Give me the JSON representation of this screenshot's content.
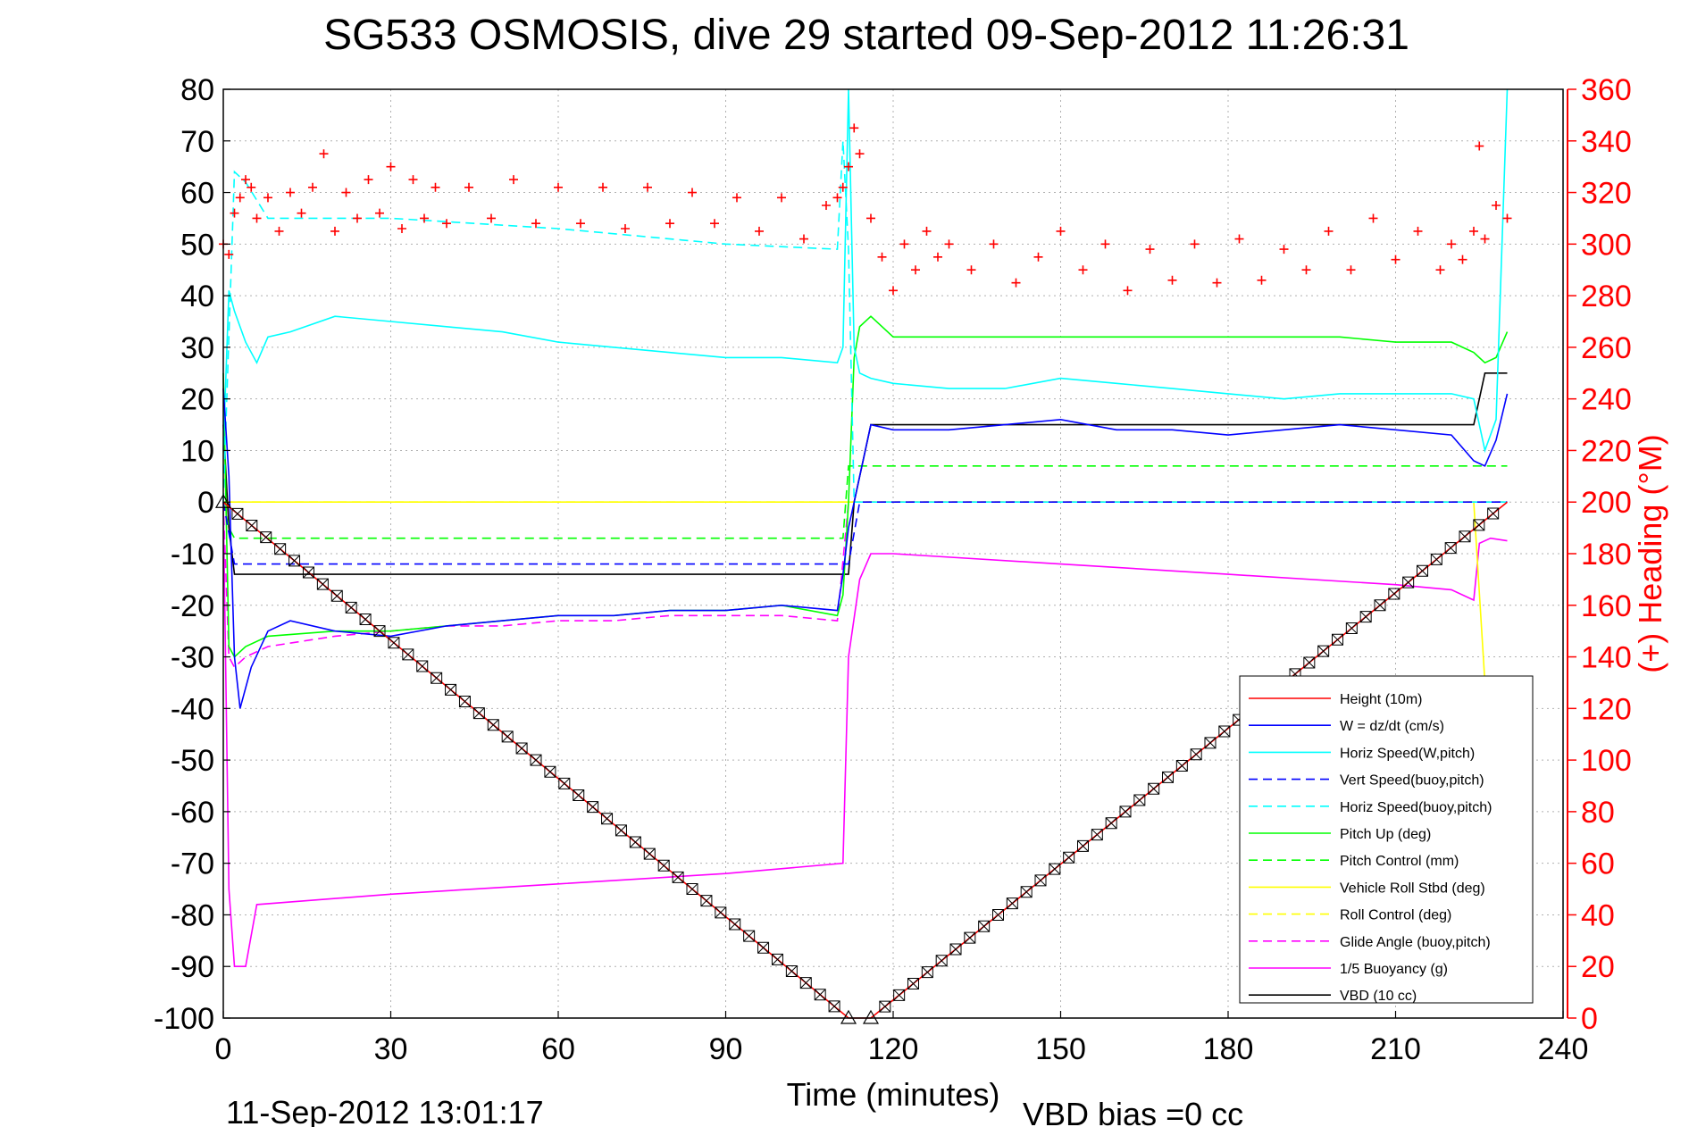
{
  "chart_data": {
    "type": "line",
    "title": "SG533 OSMOSIS, dive 29 started 09-Sep-2012 11:26:31",
    "xlabel": "Time (minutes)",
    "ylabel_right": "(+) Heading (°M)",
    "footer_left": "11-Sep-2012 13:01:17",
    "footer_right": "VBD bias =0 cc",
    "xlim": [
      0,
      240
    ],
    "ylim_left": [
      -100,
      80
    ],
    "ylim_right": [
      0,
      360
    ],
    "grid": true,
    "legend_position": "bottom-right",
    "x_ticks": [
      "0",
      "30",
      "60",
      "90",
      "120",
      "150",
      "180",
      "210",
      "240"
    ],
    "y_left_ticks": [
      "80",
      "70",
      "60",
      "50",
      "40",
      "30",
      "20",
      "10",
      "0",
      "-10",
      "-20",
      "-30",
      "-40",
      "-50",
      "-60",
      "-70",
      "-80",
      "-90",
      "-100"
    ],
    "y_right_ticks": [
      "360",
      "340",
      "320",
      "300",
      "280",
      "260",
      "240",
      "220",
      "200",
      "180",
      "160",
      "140",
      "120",
      "100",
      "80",
      "60",
      "40",
      "20",
      "0"
    ],
    "series": [
      {
        "name": "Height (10m)",
        "color": "#ff0000",
        "dash": "solid",
        "x": [
          0,
          112,
          116,
          230
        ],
        "y": [
          0,
          -100,
          -100,
          0
        ]
      },
      {
        "name": "W = dz/dt (cm/s)",
        "color": "#0000ff",
        "dash": "solid",
        "x": [
          0,
          1,
          2,
          3,
          5,
          8,
          12,
          20,
          30,
          40,
          50,
          60,
          70,
          80,
          90,
          100,
          110,
          111,
          112,
          113,
          114,
          116,
          120,
          130,
          140,
          150,
          160,
          170,
          180,
          190,
          200,
          210,
          220,
          224,
          226,
          228,
          230
        ],
        "y": [
          22,
          5,
          -30,
          -40,
          -32,
          -25,
          -23,
          -25,
          -26,
          -24,
          -23,
          -22,
          -22,
          -21,
          -21,
          -20,
          -21,
          -14,
          -5,
          0,
          5,
          15,
          14,
          14,
          15,
          16,
          14,
          14,
          13,
          14,
          15,
          14,
          13,
          8,
          7,
          12,
          21
        ]
      },
      {
        "name": "Horiz Speed(W,pitch)",
        "color": "#00ffff",
        "dash": "solid",
        "x": [
          0,
          1,
          2,
          4,
          6,
          8,
          12,
          20,
          30,
          40,
          50,
          60,
          70,
          80,
          90,
          100,
          110,
          111,
          112,
          113,
          114,
          116,
          120,
          130,
          140,
          150,
          160,
          170,
          180,
          190,
          200,
          210,
          220,
          224,
          226,
          228,
          230
        ],
        "y": [
          10,
          41,
          37,
          31,
          27,
          32,
          33,
          36,
          35,
          34,
          33,
          31,
          30,
          29,
          28,
          28,
          27,
          30,
          80,
          30,
          25,
          24,
          23,
          22,
          22,
          24,
          23,
          22,
          21,
          20,
          21,
          21,
          21,
          20,
          10,
          16,
          80
        ]
      },
      {
        "name": "Vert Speed(buoy,pitch)",
        "color": "#0000ff",
        "dash": "dash",
        "x": [
          0,
          2,
          112,
          114,
          230
        ],
        "y": [
          0,
          -12,
          -12,
          0,
          0
        ]
      },
      {
        "name": "Horiz Speed(buoy,pitch)",
        "color": "#00ffff",
        "dash": "dash",
        "x": [
          0,
          2,
          4,
          8,
          30,
          60,
          90,
          110,
          111,
          112,
          113,
          230
        ],
        "y": [
          0,
          64,
          62,
          55,
          55,
          53,
          50,
          49,
          70,
          49,
          0,
          0
        ]
      },
      {
        "name": "Pitch Up (deg)",
        "color": "#00ff00",
        "dash": "solid",
        "x": [
          0,
          1,
          2,
          4,
          8,
          20,
          30,
          40,
          50,
          60,
          70,
          80,
          90,
          100,
          110,
          111,
          112,
          113,
          114,
          116,
          120,
          130,
          140,
          150,
          160,
          170,
          180,
          190,
          200,
          210,
          220,
          224,
          226,
          228,
          230
        ],
        "y": [
          25,
          -28,
          -30,
          -28,
          -26,
          -25,
          -25,
          -24,
          -23,
          -22,
          -22,
          -21,
          -21,
          -20,
          -22,
          -18,
          0,
          28,
          34,
          36,
          32,
          32,
          32,
          32,
          32,
          32,
          32,
          32,
          32,
          31,
          31,
          29,
          27,
          28,
          33
        ]
      },
      {
        "name": "Pitch Control (mm)",
        "color": "#00ff00",
        "dash": "dash",
        "x": [
          0,
          1,
          2,
          30,
          60,
          90,
          110,
          111,
          112,
          113,
          230
        ],
        "y": [
          0,
          -5,
          -7,
          -7,
          -7,
          -7,
          -7,
          -7,
          7,
          7,
          7
        ]
      },
      {
        "name": "Vehicle Roll Stbd (deg)",
        "color": "#ffff00",
        "dash": "solid",
        "x": [
          0,
          2,
          10,
          20,
          30,
          40,
          50,
          60,
          70,
          80,
          90,
          100,
          110,
          112,
          120,
          130,
          140,
          150,
          160,
          170,
          180,
          190,
          200,
          210,
          220,
          224,
          226
        ],
        "y": [
          0,
          0,
          0,
          0,
          0,
          0,
          0,
          0,
          0,
          0,
          0,
          0,
          0,
          0,
          0,
          0,
          0,
          0,
          0,
          0,
          0,
          0,
          0,
          0,
          0,
          0,
          -35
        ]
      },
      {
        "name": "Roll Control (deg)",
        "color": "#ffff00",
        "dash": "dash",
        "x": [
          0,
          230
        ],
        "y": [
          0,
          0
        ]
      },
      {
        "name": "Glide Angle (buoy,pitch)",
        "color": "#ff00ff",
        "dash": "dash",
        "x": [
          0,
          1,
          2,
          4,
          8,
          20,
          30,
          40,
          50,
          60,
          70,
          80,
          90,
          100,
          110,
          112,
          113,
          230
        ],
        "y": [
          0,
          -30,
          -32,
          -30,
          -28,
          -26,
          -25,
          -24,
          -24,
          -23,
          -23,
          -22,
          -22,
          -22,
          -23,
          0,
          0,
          0
        ]
      },
      {
        "name": "1/5 Buoyancy (g)",
        "color": "#ff00ff",
        "dash": "solid",
        "x": [
          0,
          1,
          2,
          4,
          6,
          30,
          60,
          90,
          111,
          112,
          114,
          116,
          120,
          150,
          180,
          210,
          220,
          224,
          225,
          227,
          230
        ],
        "y": [
          0,
          -75,
          -90,
          -90,
          -78,
          -76,
          -74,
          -72,
          -70,
          -30,
          -15,
          -10,
          -10,
          -12,
          -14,
          -16,
          -17,
          -19,
          -8,
          -7,
          -7.5
        ]
      },
      {
        "name": "VBD (10 cc)",
        "color": "#000000",
        "dash": "solid",
        "x": [
          0,
          1,
          2,
          112,
          113,
          116,
          224,
          226,
          230
        ],
        "y": [
          15,
          -5,
          -14,
          -14,
          0,
          15,
          15,
          25,
          25
        ]
      }
    ],
    "heading_series": {
      "name": "Heading (°M)",
      "color": "#ff0000",
      "marker": "+",
      "x": [
        0,
        1,
        2,
        3,
        4,
        5,
        6,
        8,
        10,
        12,
        14,
        16,
        18,
        20,
        22,
        24,
        26,
        28,
        30,
        32,
        34,
        36,
        38,
        40,
        44,
        48,
        52,
        56,
        60,
        64,
        68,
        72,
        76,
        80,
        84,
        88,
        92,
        96,
        100,
        104,
        108,
        110,
        111,
        112,
        113,
        114,
        116,
        118,
        120,
        122,
        124,
        126,
        128,
        130,
        134,
        138,
        142,
        146,
        150,
        154,
        158,
        162,
        166,
        170,
        174,
        178,
        182,
        186,
        190,
        194,
        198,
        202,
        206,
        210,
        214,
        218,
        220,
        222,
        224,
        225,
        226,
        228,
        230
      ],
      "y": [
        300,
        296,
        312,
        318,
        325,
        322,
        310,
        318,
        305,
        320,
        312,
        322,
        335,
        305,
        320,
        310,
        325,
        312,
        330,
        306,
        325,
        310,
        322,
        308,
        322,
        310,
        325,
        308,
        322,
        308,
        322,
        306,
        322,
        308,
        320,
        308,
        318,
        305,
        318,
        302,
        315,
        318,
        322,
        330,
        345,
        335,
        310,
        295,
        282,
        300,
        290,
        305,
        295,
        300,
        290,
        300,
        285,
        295,
        305,
        290,
        300,
        282,
        298,
        286,
        300,
        285,
        302,
        286,
        298,
        290,
        305,
        290,
        310,
        294,
        305,
        290,
        300,
        294,
        305,
        338,
        302,
        315,
        310
      ]
    }
  }
}
